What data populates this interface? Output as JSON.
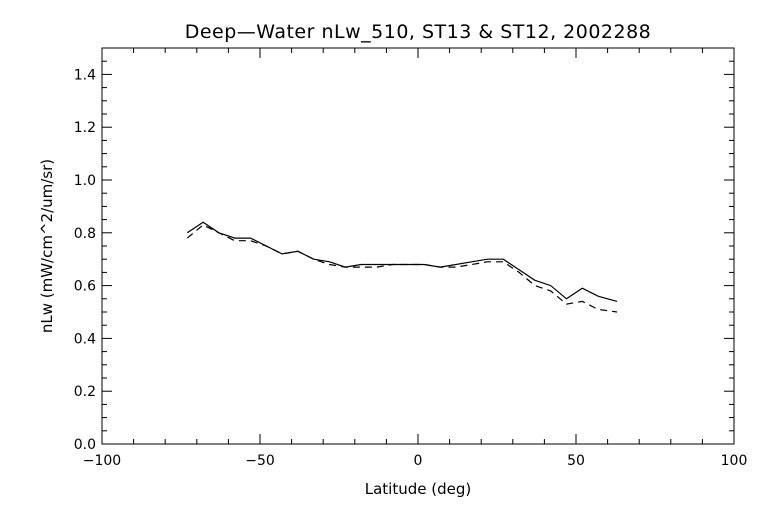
{
  "chart_data": {
    "type": "line",
    "title": "Deep—Water nLw_510, ST13 & ST12, 2002288",
    "xlabel": "Latitude (deg)",
    "ylabel": "nLw (mW/cm^2/um/sr)",
    "xlim": [
      -100,
      100
    ],
    "ylim": [
      0.0,
      1.5
    ],
    "x_ticks": [
      -100,
      -50,
      0,
      50,
      100
    ],
    "x_tick_labels": [
      "−100",
      "−50",
      "0",
      "50",
      "100"
    ],
    "y_ticks": [
      0.0,
      0.2,
      0.4,
      0.6,
      0.8,
      1.0,
      1.2,
      1.4
    ],
    "y_tick_labels": [
      "0.0",
      "0.2",
      "0.4",
      "0.6",
      "0.8",
      "1.0",
      "1.2",
      "1.4"
    ],
    "grid": false,
    "series": [
      {
        "style": "solid",
        "color": "#000000",
        "x": [
          -73,
          -68,
          -63,
          -58,
          -53,
          -48,
          -43,
          -38,
          -33,
          -28,
          -23,
          -18,
          -13,
          -8,
          -3,
          2,
          7,
          12,
          17,
          22,
          27,
          32,
          37,
          42,
          47,
          52,
          57,
          63
        ],
        "y": [
          0.8,
          0.84,
          0.8,
          0.78,
          0.78,
          0.75,
          0.72,
          0.73,
          0.7,
          0.69,
          0.67,
          0.68,
          0.68,
          0.68,
          0.68,
          0.68,
          0.67,
          0.68,
          0.69,
          0.7,
          0.7,
          0.66,
          0.62,
          0.6,
          0.55,
          0.59,
          0.56,
          0.54
        ]
      },
      {
        "style": "dashed",
        "color": "#000000",
        "x": [
          -73,
          -68,
          -63,
          -58,
          -53,
          -48,
          -43,
          -38,
          -33,
          -28,
          -23,
          -18,
          -13,
          -8,
          -3,
          2,
          7,
          12,
          17,
          22,
          27,
          32,
          37,
          42,
          47,
          52,
          57,
          63
        ],
        "y": [
          0.78,
          0.83,
          0.8,
          0.77,
          0.77,
          0.75,
          0.72,
          0.73,
          0.7,
          0.68,
          0.67,
          0.67,
          0.67,
          0.68,
          0.68,
          0.68,
          0.67,
          0.67,
          0.68,
          0.69,
          0.69,
          0.65,
          0.6,
          0.58,
          0.53,
          0.54,
          0.51,
          0.5
        ]
      }
    ]
  }
}
